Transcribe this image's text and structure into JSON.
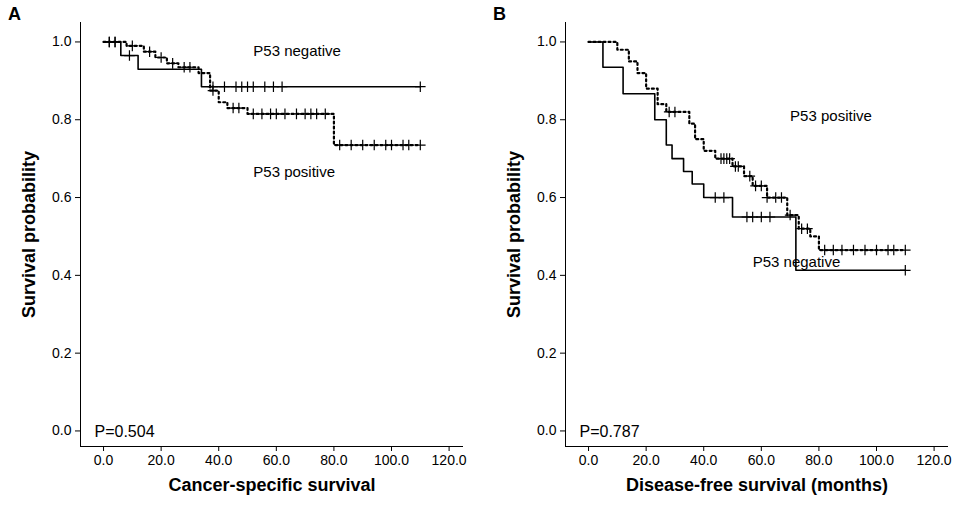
{
  "chart_data": [
    {
      "type": "line",
      "panel": "A",
      "x_label": "Cancer-specific survival",
      "y_label": "Survival probability",
      "annotation": "P=0.504",
      "xlim": [
        -8,
        125
      ],
      "xticks": [
        {
          "value": 0,
          "label": "0.0"
        },
        {
          "value": 20,
          "label": "20.0"
        },
        {
          "value": 40,
          "label": "40.0"
        },
        {
          "value": 60,
          "label": "60.0"
        },
        {
          "value": 80,
          "label": "80.0"
        },
        {
          "value": 100,
          "label": "100.0"
        },
        {
          "value": 120,
          "label": "120.0"
        }
      ],
      "ylim": [
        -0.04,
        1.05
      ],
      "yticks": [
        {
          "value": 0,
          "label": "0.0"
        },
        {
          "value": 0.2,
          "label": "0.2"
        },
        {
          "value": 0.4,
          "label": "0.4"
        },
        {
          "value": 0.6,
          "label": "0.6"
        },
        {
          "value": 0.8,
          "label": "0.8"
        },
        {
          "value": 1,
          "label": "1.0"
        }
      ],
      "series": [
        {
          "name": "P53 negative",
          "color": "#000000",
          "line_style": "solid",
          "marker": "plus",
          "x": [
            0,
            6,
            12,
            34,
            110
          ],
          "values": [
            1.0,
            0.965,
            0.93,
            0.885,
            0.885
          ],
          "censored_x": [
            2,
            4,
            9,
            38,
            42,
            46,
            48,
            50,
            52,
            56,
            59,
            62,
            110
          ]
        },
        {
          "name": "P53 positive",
          "color": "#000000",
          "line_style": "dotted",
          "marker": "plus",
          "x": [
            0,
            8,
            14,
            18,
            22,
            26,
            33,
            37,
            40,
            43,
            50,
            80,
            110
          ],
          "values": [
            1.0,
            0.99,
            0.975,
            0.96,
            0.945,
            0.935,
            0.92,
            0.875,
            0.845,
            0.83,
            0.815,
            0.735,
            0.735
          ],
          "censored_x": [
            2,
            4,
            10,
            16,
            20,
            24,
            28,
            30,
            38,
            45,
            47,
            52,
            55,
            58,
            60,
            63,
            67,
            70,
            72,
            74,
            77,
            82,
            86,
            90,
            94,
            98,
            100,
            104,
            106,
            110
          ]
        }
      ]
    },
    {
      "type": "line",
      "panel": "B",
      "x_label": "Disease-free survival (months)",
      "y_label": "Survival probability",
      "annotation": "P=0.787",
      "xlim": [
        -8,
        125
      ],
      "xticks": [
        {
          "value": 0,
          "label": "0.0"
        },
        {
          "value": 20,
          "label": "20.0"
        },
        {
          "value": 40,
          "label": "40.0"
        },
        {
          "value": 60,
          "label": "60.0"
        },
        {
          "value": 80,
          "label": "80.0"
        },
        {
          "value": 100,
          "label": "100.0"
        },
        {
          "value": 120,
          "label": "120.0"
        }
      ],
      "ylim": [
        -0.04,
        1.05
      ],
      "yticks": [
        {
          "value": 0,
          "label": "0.0"
        },
        {
          "value": 0.2,
          "label": "0.2"
        },
        {
          "value": 0.4,
          "label": "0.4"
        },
        {
          "value": 0.6,
          "label": "0.6"
        },
        {
          "value": 0.8,
          "label": "0.8"
        },
        {
          "value": 1,
          "label": "1.0"
        }
      ],
      "series": [
        {
          "name": "P53 positive",
          "color": "#000000",
          "line_style": "dotted",
          "marker": "plus",
          "x": [
            0,
            8,
            10,
            14,
            17,
            20,
            24,
            27,
            35,
            37,
            40,
            44,
            50,
            54,
            57,
            62,
            69,
            73,
            77,
            80,
            110
          ],
          "values": [
            1.0,
            1.0,
            0.98,
            0.95,
            0.92,
            0.88,
            0.84,
            0.82,
            0.79,
            0.75,
            0.72,
            0.7,
            0.68,
            0.655,
            0.63,
            0.6,
            0.555,
            0.52,
            0.5,
            0.465,
            0.465
          ],
          "censored_x": [
            28,
            30,
            46,
            47,
            48,
            49,
            51,
            52,
            56,
            58,
            60,
            62,
            65,
            67,
            70,
            74,
            76,
            82,
            85,
            88,
            92,
            96,
            100,
            104,
            106,
            110
          ]
        },
        {
          "name": "P53 negative",
          "color": "#000000",
          "line_style": "solid",
          "marker": "plus",
          "x": [
            0,
            5,
            12,
            23,
            27,
            29,
            33,
            36,
            40,
            50,
            72,
            110
          ],
          "values": [
            1.0,
            0.935,
            0.867,
            0.8,
            0.735,
            0.7,
            0.667,
            0.635,
            0.6,
            0.55,
            0.413,
            0.413
          ],
          "censored_x": [
            44,
            47,
            55,
            57,
            60,
            63,
            110
          ]
        }
      ]
    }
  ]
}
